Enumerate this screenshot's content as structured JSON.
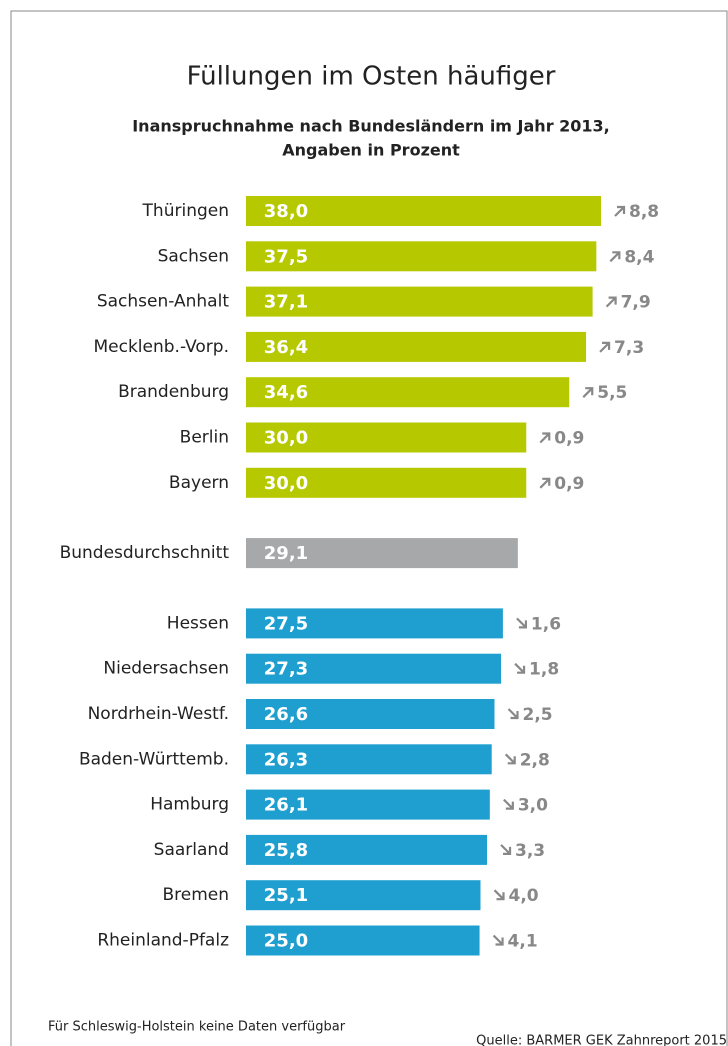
{
  "chart_data": {
    "type": "bar",
    "orientation": "horizontal",
    "title": "Füllungen im Osten häufiger",
    "subtitle": [
      "Inanspruchnahme nach Bundesländern im Jahr 2013,",
      "Angaben in Prozent"
    ],
    "groups": [
      {
        "color": "#b5c800",
        "categories": [
          "Thüringen",
          "Sachsen",
          "Sachsen-Anhalt",
          "Mecklenb.-Vorp.",
          "Brandenburg",
          "Berlin",
          "Bayern"
        ],
        "values": [
          38.0,
          37.5,
          37.1,
          36.4,
          34.6,
          30.0,
          30.0
        ],
        "value_labels": [
          "38,0",
          "37,5",
          "37,1",
          "36,4",
          "34,6",
          "30,0",
          "30,0"
        ],
        "differences": [
          8.8,
          8.4,
          7.9,
          7.3,
          5.5,
          0.9,
          0.9
        ],
        "difference_labels": [
          "8,8",
          "8,4",
          "7,9",
          "7,3",
          "5,5",
          "0,9",
          "0,9"
        ]
      },
      {
        "color": "#a7a8aa",
        "categories": [
          "Bundesdurchschnitt"
        ],
        "values": [
          29.1
        ],
        "value_labels": [
          "29,1"
        ]
      },
      {
        "color": "#1f9fcf",
        "categories": [
          "Hessen",
          "Niedersachsen",
          "Nordrhein-Westf.",
          "Baden-Württemb.",
          "Hamburg",
          "Saarland",
          "Bremen",
          "Rheinland-Pfalz"
        ],
        "values": [
          27.5,
          27.3,
          26.6,
          26.3,
          26.1,
          25.8,
          25.1,
          25.0
        ],
        "value_labels": [
          "27,5",
          "27,3",
          "26,6",
          "26,3",
          "26,1",
          "25,8",
          "25,1",
          "25,0"
        ],
        "differences": [
          1.6,
          1.8,
          2.5,
          2.8,
          3.0,
          3.3,
          4.0,
          4.1
        ],
        "difference_labels": [
          "1,6",
          "1,8",
          "2,5",
          "2,8",
          "3,0",
          "3,3",
          "4,0",
          "4,1"
        ]
      }
    ],
    "footnote": "Für Schleswig-Holstein keine Daten verfügbar",
    "source": "Quelle: BARMER GEK Zahnreport 2015"
  }
}
